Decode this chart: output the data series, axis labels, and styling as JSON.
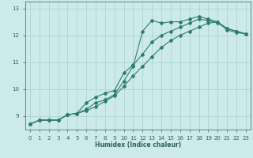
{
  "xlabel": "Humidex (Indice chaleur)",
  "bg_color": "#cceaea",
  "line_color": "#2e7d6e",
  "grid_color": "#aacece",
  "xlim": [
    -0.5,
    23.5
  ],
  "ylim": [
    8.5,
    13.25
  ],
  "xticks": [
    0,
    1,
    2,
    3,
    4,
    5,
    6,
    7,
    8,
    9,
    10,
    11,
    12,
    13,
    14,
    15,
    16,
    17,
    18,
    19,
    20,
    21,
    22,
    23
  ],
  "yticks": [
    9,
    10,
    11,
    12,
    13
  ],
  "line1_x": [
    0,
    1,
    2,
    3,
    4,
    5,
    6,
    7,
    8,
    9,
    10,
    11,
    12,
    13,
    14,
    15,
    16,
    17,
    18,
    19,
    20,
    21,
    22,
    23
  ],
  "line1_y": [
    8.7,
    8.85,
    8.85,
    8.85,
    9.05,
    9.1,
    9.25,
    9.5,
    9.6,
    9.8,
    10.3,
    10.85,
    12.15,
    12.55,
    12.45,
    12.5,
    12.5,
    12.6,
    12.7,
    12.6,
    12.5,
    12.2,
    12.1,
    12.05
  ],
  "line2_x": [
    0,
    1,
    2,
    3,
    4,
    5,
    6,
    7,
    8,
    9,
    10,
    11,
    12,
    13,
    14,
    15,
    16,
    17,
    18,
    19,
    20,
    21,
    22,
    23
  ],
  "line2_y": [
    8.7,
    8.85,
    8.85,
    8.85,
    9.05,
    9.1,
    9.5,
    9.7,
    9.85,
    9.95,
    10.6,
    10.9,
    11.3,
    11.75,
    12.0,
    12.15,
    12.3,
    12.45,
    12.6,
    12.55,
    12.45,
    12.25,
    12.15,
    12.05
  ],
  "line3_x": [
    0,
    1,
    2,
    3,
    4,
    5,
    6,
    7,
    8,
    9,
    10,
    11,
    12,
    13,
    14,
    15,
    16,
    17,
    18,
    19,
    20,
    21,
    22,
    23
  ],
  "line3_y": [
    8.7,
    8.85,
    8.85,
    8.85,
    9.05,
    9.1,
    9.2,
    9.35,
    9.55,
    9.75,
    10.1,
    10.5,
    10.85,
    11.2,
    11.55,
    11.8,
    12.0,
    12.15,
    12.3,
    12.45,
    12.5,
    12.25,
    12.15,
    12.05
  ],
  "marker": "D",
  "markersize": 2.0,
  "linewidth": 0.8,
  "font_color": "#2e5f5a",
  "axis_fontsize": 5.5,
  "tick_fontsize": 5.0
}
